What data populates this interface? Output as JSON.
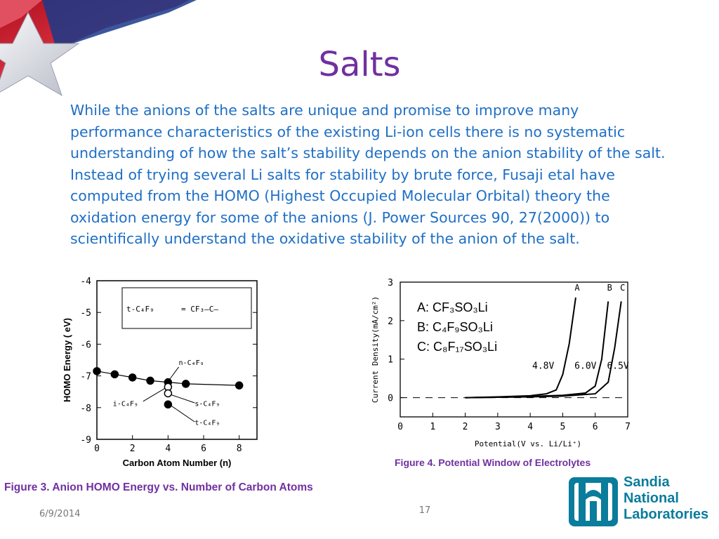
{
  "slide": {
    "title": "Salts",
    "body": "While the anions of the salts are unique and promise to improve many performance characteristics of the existing Li-ion cells there is no systematic understanding of how the salt’s stability depends on the anion stability of the salt. Instead of trying several Li salts for stability by brute force, Fusaji etal have computed from the HOMO (Highest Occupied Molecular Orbital) theory the oxidation energy for some of the anions (J. Power Sources 90, 27(2000)) to scientifically understand the oxidative stability of the anion of the salt.",
    "date": "6/9/2014",
    "page_number": "17"
  },
  "logo": {
    "lines": [
      "Sandia",
      "National",
      "Laboratories"
    ],
    "color": "#0a7c9c"
  },
  "colors": {
    "title": "#7030a0",
    "body": "#1f6fc5",
    "caption": "#7030a0"
  },
  "figure3": {
    "caption": "Figure 3. Anion HOMO Energy vs. Number of Carbon Atoms",
    "inset_label": "t-C₄F₉",
    "annotations": [
      "n-C₄F₉",
      "i-C₄F₉",
      "s-C₄F₉",
      "t-C₄F₉"
    ]
  },
  "figure4": {
    "caption": "Figure 4. Potential Window of Electrolytes",
    "legend": [
      "A: CF₃SO₃Li",
      "B: C₄F₉SO₃Li",
      "C: C₈F₁₇SO₃Li"
    ],
    "curve_labels": [
      "A",
      "B",
      "C"
    ],
    "voltage_labels": [
      "4.8V",
      "6.0V",
      "6.5V"
    ]
  },
  "chart_data": [
    {
      "type": "scatter",
      "title": "",
      "xlabel": "Carbon Atom Number (n)",
      "ylabel": "HOMO Energy ( eV)",
      "xlim": [
        0,
        9
      ],
      "ylim": [
        -9,
        -4
      ],
      "xticks": [
        0,
        2,
        4,
        6,
        8
      ],
      "yticks": [
        -4,
        -5,
        -6,
        -7,
        -8,
        -9
      ],
      "series": [
        {
          "name": "n-C₄F₉",
          "x": [
            0,
            1,
            2,
            3,
            4,
            5,
            8
          ],
          "y": [
            -6.85,
            -6.95,
            -7.05,
            -7.15,
            -7.2,
            -7.25,
            -7.3
          ],
          "marker": "filled",
          "connected": true
        },
        {
          "name": "i-C₄F₉",
          "x": [
            4
          ],
          "y": [
            -7.35
          ],
          "marker": "open"
        },
        {
          "name": "s-C₄F₉",
          "x": [
            4
          ],
          "y": [
            -7.55
          ],
          "marker": "open"
        },
        {
          "name": "t-C₄F₉",
          "x": [
            4
          ],
          "y": [
            -7.9
          ],
          "marker": "filled"
        }
      ],
      "grid": false
    },
    {
      "type": "line",
      "title": "",
      "xlabel": "Potential(V vs. Li/Li⁺)",
      "ylabel": "Current Density(mA/cm²)",
      "xlim": [
        0,
        7
      ],
      "ylim": [
        -0.5,
        3
      ],
      "xticks": [
        0,
        1,
        2,
        3,
        4,
        5,
        6,
        7
      ],
      "yticks": [
        0,
        1,
        2,
        3
      ],
      "series": [
        {
          "name": "A",
          "x": [
            2,
            3,
            4,
            4.5,
            4.8,
            5.0,
            5.2,
            5.4
          ],
          "y": [
            0,
            0.02,
            0.05,
            0.1,
            0.2,
            0.6,
            1.4,
            2.6
          ]
        },
        {
          "name": "B",
          "x": [
            2,
            3,
            4,
            5,
            5.7,
            6.0,
            6.2,
            6.4
          ],
          "y": [
            0,
            0.01,
            0.03,
            0.06,
            0.12,
            0.3,
            1.0,
            2.5
          ]
        },
        {
          "name": "C",
          "x": [
            2,
            3,
            4,
            5,
            6,
            6.4,
            6.6,
            6.8
          ],
          "y": [
            0,
            0.01,
            0.02,
            0.04,
            0.1,
            0.4,
            1.3,
            2.5
          ]
        }
      ],
      "zero_line": "dashed",
      "grid": false
    }
  ]
}
